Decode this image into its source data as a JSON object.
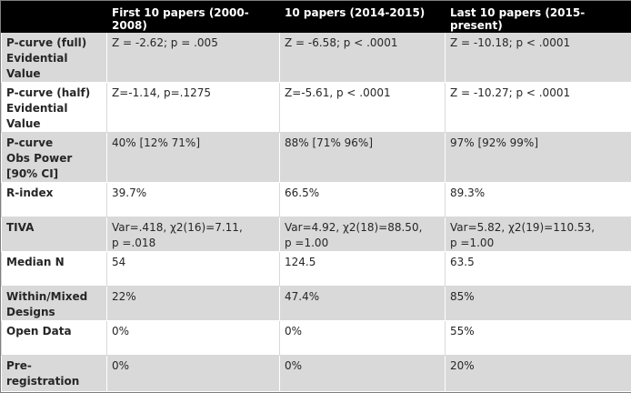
{
  "headers": [
    "",
    "First 10 papers (2000-2008)",
    "10 papers (2014-2015)",
    "Last 10 papers (2015-present)"
  ],
  "rows": [
    {
      "label": "P-curve (full)\nEvidential Value",
      "cells": [
        "Z = -2.62; p = .005",
        "Z = -6.58; p < .0001",
        "Z = -10.18; p < .0001"
      ]
    },
    {
      "label": "P-curve (half)\nEvidential Value",
      "cells": [
        "Z=-1.14, p=.1275",
        "Z=-5.61, p < .0001",
        "Z = -10.27; p < .0001"
      ]
    },
    {
      "label": "P-curve\nObs Power\n[90% CI]",
      "cells": [
        "40% [12% 71%]",
        "88% [71% 96%]",
        "97% [92% 99%]"
      ]
    },
    {
      "label": "R-index",
      "cells": [
        "39.7%",
        "66.5%",
        "89.3%"
      ]
    },
    {
      "label": "TIVA",
      "cells": [
        "Var=.418, χ2(16)=7.11,\np =.018",
        "Var=4.92, χ2(18)=88.50,\np =1.00",
        "Var=5.82, χ2(19)=110.53,\np =1.00"
      ]
    },
    {
      "label": "Median N",
      "cells": [
        "54",
        "124.5",
        "63.5"
      ]
    },
    {
      "label": "Within/Mixed\nDesigns",
      "cells": [
        "22%",
        "47.4%",
        "85%"
      ]
    },
    {
      "label": "Open Data",
      "cells": [
        "0%",
        "0%",
        "55%"
      ]
    },
    {
      "label": "Pre-registration",
      "cells": [
        "0%",
        "0%",
        "20%"
      ]
    }
  ]
}
